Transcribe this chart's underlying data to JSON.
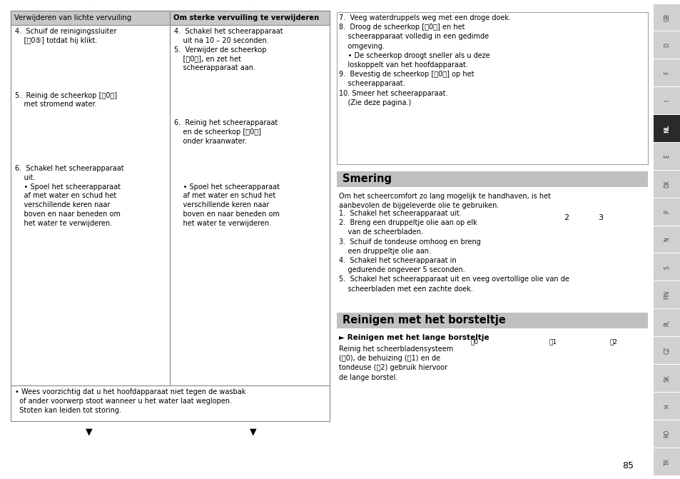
{
  "bg_color": "#ffffff",
  "page_number": "85",
  "sidebar_labels": [
    "GB",
    "D",
    "F",
    "I",
    "NL",
    "E",
    "DK",
    "P",
    "N",
    "S",
    "FIN",
    "PL",
    "CZ",
    "SK",
    "H",
    "RO",
    "TR"
  ],
  "sidebar_active": "NL",
  "sidebar_bg": "#d0d0d0",
  "sidebar_active_bg": "#2a2a2a",
  "sidebar_active_color": "#ffffff",
  "sidebar_color": "#444444",
  "left_box_title": "Verwijderen van lichte vervuiling",
  "right_box_title": "Om sterke vervuiling te verwijderen",
  "bottom_warning": "• Wees voorzichtig dat u het hoofdapparaat niet tegen de wasbak\n  of ander voorwerp stoot wanneer u het water laat weglopen.\n  Stoten kan leiden tot storing.",
  "steps_7_10": "7.  Veeg waterdruppels weg met een droge doek.\n8.  Droog de scheerkop [⑀0⒳] en het\n    scheerapparaat volledig in een gedimde\n    omgeving.\n    • De scheerkop droogt sneller als u deze\n    loskoppelt van het hoofdapparaat.\n9.  Bevestig de scheerkop [⑀0⒳] op het\n    scheerapparaat.\n10. Smeer het scheerapparaat.\n    (Zie deze pagina.)",
  "smering_title": "Smering",
  "smering_intro": "Om het scheercomfort zo lang mogelijk te handhaven, is het\naanbevolen de bijgeleverde olie te gebruiken.",
  "smering_steps": "1.  Schakel het scheerapparaat uit.\n2.  Breng een druppeltje olie aan op elk\n    van de scheerbladen.\n3.  Schuif de tondeuse omhoog en breng\n    een druppeltje olie aan.\n4.  Schakel het scheerapparaat in\n    gedurende ongeveer 5 seconden.\n5.  Schakel het scheerapparaat uit en veeg overtollige olie van de\n    scheerbladen met een zachte doek.",
  "reinigen_title": "Reinigen met het borsteltje",
  "reinigen_subtitle": "► Reinigen met het lange borsteltje",
  "reinigen_text": "Reinig het scheerbladensysteem\n(␀0), de behuizing (␀1) en de\ntondeuse (␀2) gebruik hiervoor\nde lange borstel.",
  "left_col_text": "4.  Schuif de reinigingssluiter\n    [⑀0⑤] totdat hij klikt.\n\n\n\n\n\n5.  Reinig de scheerkop [⑀0⒳]\n    met stromend water.\n\n\n\n\n\n\n6.  Schakel het scheerapparaat\n    uit.\n    • Spoel het scheerapparaat\n    af met water en schud het\n    verschillende keren naar\n    boven en naar beneden om\n    het water te verwijderen.",
  "right_col_text": "4.  Schakel het scheerapparaat\n    uit na 10 – 20 seconden.\n5.  Verwijder de scheerkop\n    [⑀0⒳], en zet het\n    scheerapparaat aan.\n\n\n\n\n\n6.  Reinig het scheerapparaat\n    en de scheerkop [⑀0⒳]\n    onder kraanwater.\n\n\n\n\n    • Spoel het scheerapparaat\n    af met water en schud het\n    verschillende keren naar\n    boven en naar beneden om\n    het water te verwijderen.",
  "header_color": "#c8c8c8",
  "smering_header_color": "#c0c0c0",
  "reinigen_header_color": "#c0c0c0",
  "border_color": "#888888",
  "text_color": "#000000",
  "font_size_main": 7.0,
  "font_size_header": 7.5,
  "font_size_section": 10.5
}
